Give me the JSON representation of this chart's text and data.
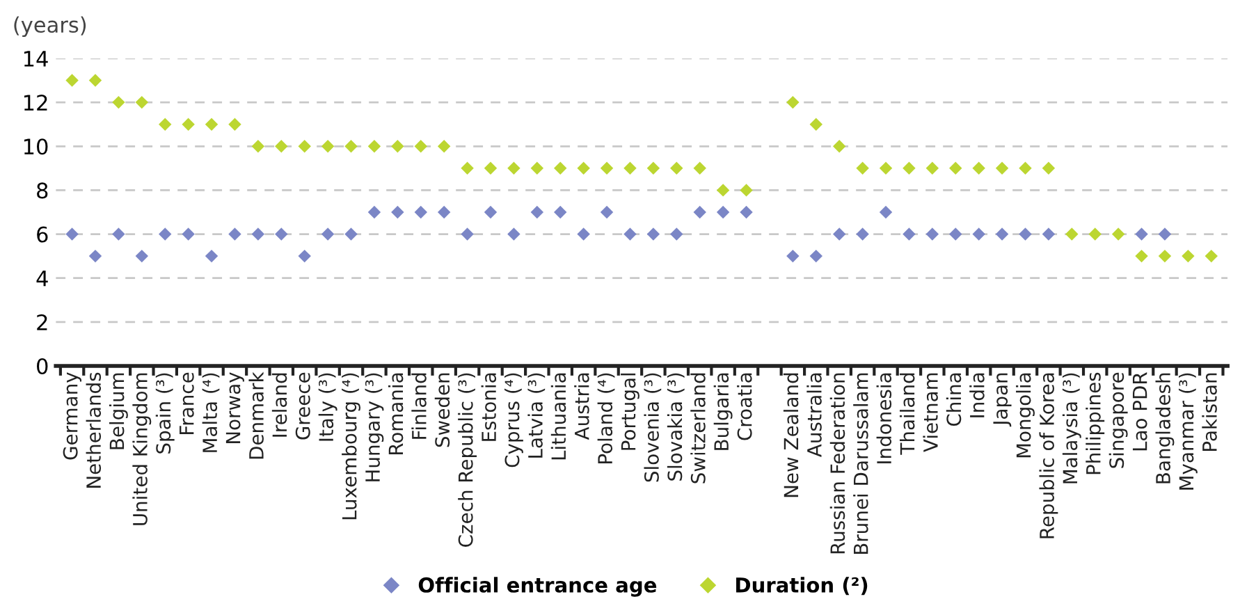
{
  "chart_data": {
    "type": "scatter",
    "ylabel": "(years)",
    "categories": [
      "Germany",
      "Netherlands",
      "Belgium",
      "United Kingdom",
      "Spain (³)",
      "France",
      "Malta (⁴)",
      "Norway",
      "Denmark",
      "Ireland",
      "Greece",
      "Italy (³)",
      "Luxembourg (⁴)",
      "Hungary (³)",
      "Romania",
      "Finland",
      "Sweden",
      "Czech Republic (³)",
      "Estonia",
      "Cyprus (⁴)",
      "Latvia (³)",
      "Lithuania",
      "Austria",
      "Poland (⁴)",
      "Portugal",
      "Slovenia (³)",
      "Slovakia (³)",
      "Switzerland",
      "Bulgaria",
      "Croatia",
      null,
      "New Zealand",
      "Australia",
      "Russian Federation",
      "Brunei Darussalam",
      "Indonesia",
      "Thailand",
      "Vietnam",
      "China",
      "India",
      "Japan",
      "Mongolia",
      "Republic of Korea",
      "Malaysia (³)",
      "Philippines",
      "Singapore",
      "Lao PDR",
      "Bangladesh",
      "Myanmar (³)",
      "Pakistan"
    ],
    "series": [
      {
        "name": "Official entrance age",
        "color": "#7b86c6",
        "values": [
          6,
          5,
          6,
          5,
          6,
          6,
          5,
          6,
          6,
          6,
          5,
          6,
          6,
          7,
          7,
          7,
          7,
          6,
          7,
          6,
          7,
          7,
          6,
          7,
          6,
          6,
          6,
          7,
          7,
          7,
          null,
          5,
          5,
          6,
          6,
          7,
          6,
          6,
          6,
          6,
          6,
          6,
          6,
          null,
          null,
          null,
          6,
          6,
          null,
          null
        ]
      },
      {
        "name": "Duration (²)",
        "color": "#bcd631",
        "values": [
          13,
          13,
          12,
          12,
          11,
          11,
          11,
          11,
          10,
          10,
          10,
          10,
          10,
          10,
          10,
          10,
          10,
          9,
          9,
          9,
          9,
          9,
          9,
          9,
          9,
          9,
          9,
          9,
          8,
          8,
          null,
          12,
          11,
          10,
          9,
          9,
          9,
          9,
          9,
          9,
          9,
          9,
          9,
          6,
          6,
          6,
          5,
          5,
          5,
          5
        ]
      }
    ],
    "ylim": [
      0,
      14
    ],
    "yticks": [
      0,
      2,
      4,
      6,
      8,
      10,
      12,
      14
    ],
    "grid": "y",
    "legend": "bottom",
    "marker": "diamond"
  }
}
